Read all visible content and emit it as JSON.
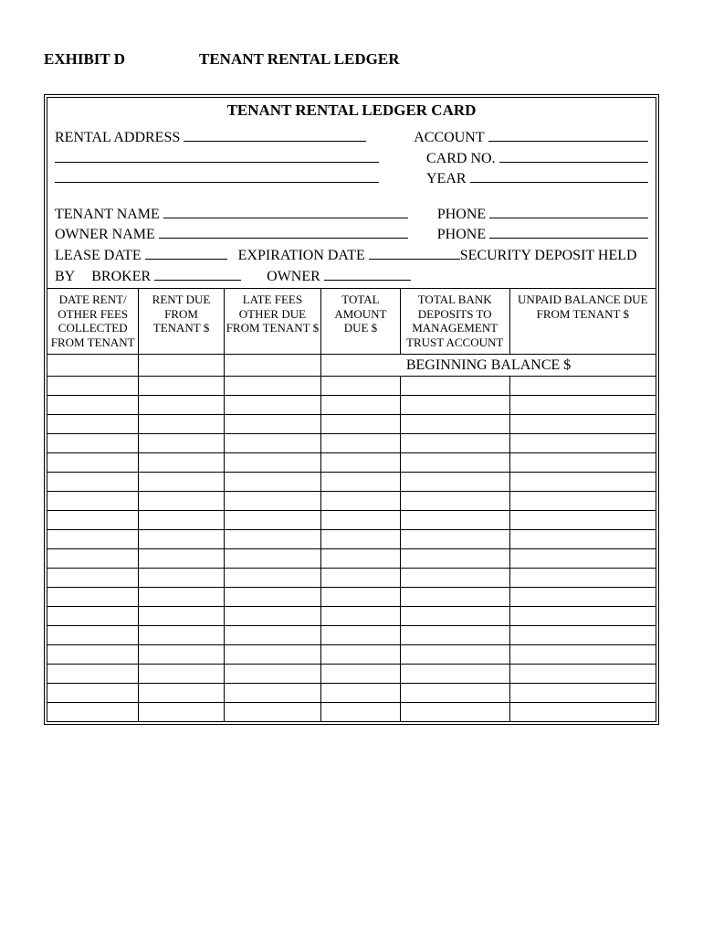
{
  "header": {
    "exhibit": "EXHIBIT D",
    "title": "TENANT RENTAL LEDGER"
  },
  "card": {
    "title": "TENANT RENTAL LEDGER CARD",
    "fields": {
      "rental_address_label": "RENTAL ADDRESS",
      "account_label": "ACCOUNT",
      "card_no_label": "CARD NO.",
      "year_label": "YEAR",
      "tenant_name_label": "TENANT NAME",
      "phone_label": "PHONE",
      "owner_name_label": "OWNER NAME",
      "lease_date_label": "LEASE DATE",
      "expiration_date_label": "EXPIRATION DATE",
      "security_deposit_label": "SECURITY DEPOSIT HELD",
      "by_label": "BY",
      "broker_label": "BROKER",
      "owner_label": "OWNER"
    },
    "columns": [
      "DATE RENT/ OTHER FEES COLLECTED FROM TENANT",
      "RENT DUE FROM TENANT $",
      "LATE FEES OTHER DUE FROM TENANT $",
      "TOTAL AMOUNT DUE $",
      "TOTAL BANK DEPOSITS TO MANAGEMENT TRUST ACCOUNT",
      "UNPAID BALANCE DUE FROM TENANT $"
    ],
    "column_widths_pct": [
      15,
      14,
      16,
      13,
      18,
      24
    ],
    "beginning_balance_label": "BEGINNING BALANCE $",
    "blank_row_count": 18
  },
  "style": {
    "background_color": "#ffffff",
    "text_color": "#000000",
    "border_color": "#000000",
    "title_fontsize_pt": 13,
    "body_fontsize_pt": 12,
    "table_header_fontsize_pt": 10
  }
}
